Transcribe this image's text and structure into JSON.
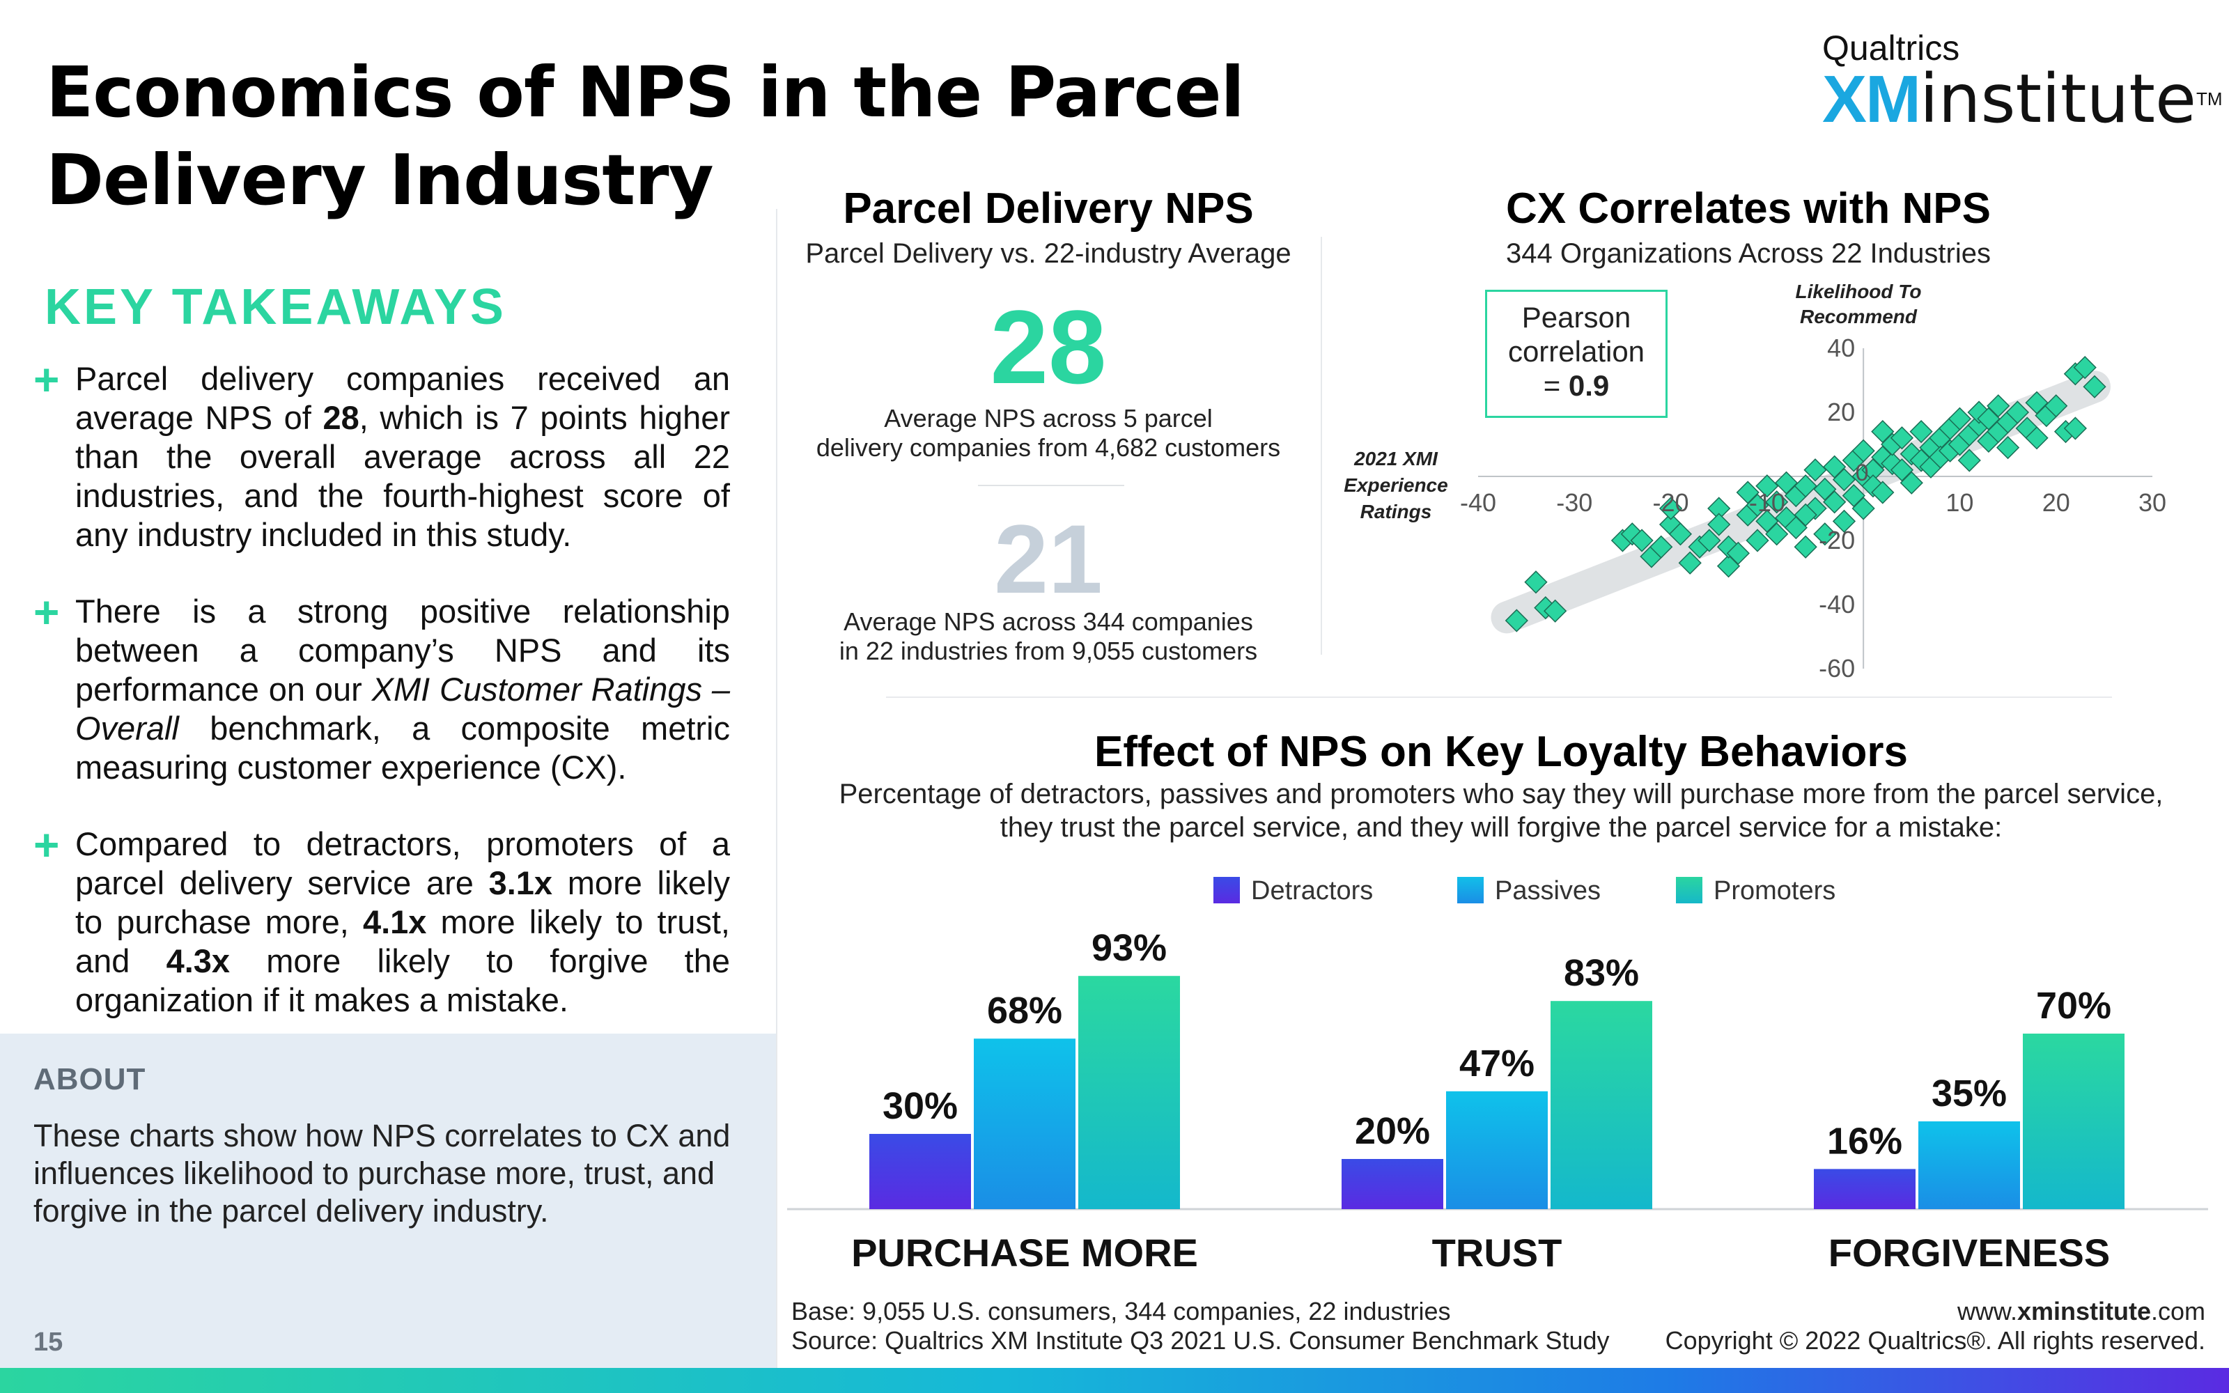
{
  "page": {
    "title": "Economics of NPS in the Parcel Delivery Industry",
    "brand": {
      "small": "Qualtrics",
      "xm": "XM",
      "institute": "institute",
      "tm": "TM"
    },
    "key_takeaways": {
      "heading": "KEY TAKEAWAYS",
      "bullets": [
        {
          "pre": "Parcel delivery companies received an average NPS of ",
          "b1": "28",
          "post": ", which is 7 points higher than the overall average across all 22 industries, and the fourth-highest score of any industry included in this study."
        },
        {
          "pre": "There is a strong positive relationship between a company’s NPS and its performance on our ",
          "i1": "XMI Customer Ratings – Overall",
          "post": " benchmark, a composite metric measuring customer experience (CX)."
        },
        {
          "pre": "Compared to detractors, promoters of a parcel delivery service are ",
          "b1": "3.1x",
          "mid1": " more likely to purchase more, ",
          "b2": "4.1x",
          "mid2": " more likely to trust, and ",
          "b3": "4.3x",
          "post": " more likely to forgive the organization if it makes a mistake."
        }
      ]
    },
    "about": {
      "label": "ABOUT",
      "text": "These charts show how NPS correlates to CX and influences likelihood to purchase more, trust, and forgive in the parcel delivery industry."
    },
    "page_number": "15",
    "nps_panel": {
      "title": "Parcel Delivery NPS",
      "subtitle": "Parcel Delivery vs. 22-industry Average",
      "parcel_value": "28",
      "parcel_desc_1": "Average NPS across 5 parcel",
      "parcel_desc_2": "delivery companies from 4,682 customers",
      "industry_value": "21",
      "industry_desc_1": "Average NPS across 344 companies",
      "industry_desc_2": "in 22 industries from 9,055 customers"
    },
    "cx_panel": {
      "title": "CX Correlates with NPS",
      "subtitle": "344 Organizations Across 22 Industries",
      "pearson_1": "Pearson",
      "pearson_2": "correlation",
      "pearson_3a": "= ",
      "pearson_3b": "0.9"
    },
    "loyalty_panel": {
      "title": "Effect of NPS on Key Loyalty Behaviors",
      "subtitle_1": "Percentage of detractors, passives and promoters who say they will purchase more from the parcel service,",
      "subtitle_2": "they trust the parcel service, and they will forgive the parcel service for a mistake:"
    },
    "footer": {
      "base": "Base: 9,055 U.S. consumers, 344 companies, 22 industries",
      "source": "Source: Qualtrics XM Institute Q3 2021 U.S. Consumer Benchmark Study",
      "site_pre": "www.",
      "site_bold": "xminstitute",
      "site_post": ".com",
      "copyright": "Copyright © 2022 Qualtrics®. All rights reserved."
    },
    "colors": {
      "accent": "#2bd5a0",
      "detractors": "#4a33e0",
      "passives": "#10b4e6",
      "promoters": "#2bd5a0"
    }
  },
  "chart_data": [
    {
      "type": "scatter",
      "xlabel": "2021 XMI Experience Ratings",
      "ylabel": "Likelihood To Recommend",
      "xlim": [
        -40,
        30
      ],
      "ylim": [
        -60,
        40
      ],
      "x_ticks": [
        -40,
        -30,
        -20,
        -10,
        0,
        10,
        20,
        30
      ],
      "y_ticks": [
        -60,
        -40,
        -20,
        0,
        20,
        40
      ],
      "trend_band": true,
      "points": [
        [
          -36,
          -45
        ],
        [
          -34,
          -33
        ],
        [
          -33,
          -41
        ],
        [
          -32,
          -42
        ],
        [
          -25,
          -20
        ],
        [
          -24,
          -18
        ],
        [
          -23,
          -20
        ],
        [
          -22,
          -25
        ],
        [
          -21,
          -22
        ],
        [
          -20,
          -15
        ],
        [
          -19,
          -18
        ],
        [
          -18,
          -27
        ],
        [
          -17,
          -22
        ],
        [
          -16,
          -20
        ],
        [
          -15,
          -10
        ],
        [
          -14,
          -28
        ],
        [
          -14,
          -22
        ],
        [
          -13,
          -24
        ],
        [
          -12,
          -12
        ],
        [
          -12,
          -5
        ],
        [
          -11,
          -20
        ],
        [
          -10,
          -14
        ],
        [
          -10,
          -3
        ],
        [
          -9,
          -8
        ],
        [
          -9,
          -18
        ],
        [
          -8,
          -2
        ],
        [
          -8,
          -13
        ],
        [
          -7,
          -6
        ],
        [
          -7,
          -16
        ],
        [
          -6,
          -3
        ],
        [
          -6,
          -22
        ],
        [
          -5,
          -10
        ],
        [
          -5,
          2
        ],
        [
          -4,
          -4
        ],
        [
          -4,
          -18
        ],
        [
          -3,
          3
        ],
        [
          -3,
          -8
        ],
        [
          -2,
          -1
        ],
        [
          -2,
          -14
        ],
        [
          -1,
          5
        ],
        [
          -1,
          -6
        ],
        [
          0,
          0
        ],
        [
          0,
          -10
        ],
        [
          0,
          8
        ],
        [
          1,
          2
        ],
        [
          1,
          -3
        ],
        [
          2,
          6
        ],
        [
          2,
          -5
        ],
        [
          3,
          4
        ],
        [
          3,
          10
        ],
        [
          4,
          2
        ],
        [
          4,
          12
        ],
        [
          5,
          7
        ],
        [
          5,
          -2
        ],
        [
          6,
          5
        ],
        [
          6,
          14
        ],
        [
          7,
          9
        ],
        [
          7,
          3
        ],
        [
          8,
          12
        ],
        [
          8,
          6
        ],
        [
          9,
          15
        ],
        [
          9,
          8
        ],
        [
          10,
          10
        ],
        [
          10,
          18
        ],
        [
          11,
          13
        ],
        [
          11,
          5
        ],
        [
          12,
          16
        ],
        [
          12,
          20
        ],
        [
          13,
          11
        ],
        [
          13,
          18
        ],
        [
          14,
          14
        ],
        [
          14,
          22
        ],
        [
          15,
          17
        ],
        [
          15,
          9
        ],
        [
          16,
          20
        ],
        [
          17,
          15
        ],
        [
          18,
          23
        ],
        [
          18,
          12
        ],
        [
          19,
          19
        ],
        [
          20,
          22
        ],
        [
          21,
          14
        ],
        [
          22,
          32
        ],
        [
          22,
          15
        ],
        [
          23,
          34
        ],
        [
          24,
          28
        ],
        [
          -20,
          -10
        ],
        [
          -15,
          -15
        ],
        [
          -11,
          -9
        ],
        [
          -6,
          -12
        ],
        [
          2,
          14
        ]
      ]
    },
    {
      "type": "bar",
      "categories": [
        "PURCHASE MORE",
        "TRUST",
        "FORGIVENESS"
      ],
      "series": [
        {
          "name": "Detractors",
          "values": [
            30,
            20,
            16
          ]
        },
        {
          "name": "Passives",
          "values": [
            68,
            47,
            35
          ]
        },
        {
          "name": "Promoters",
          "values": [
            93,
            83,
            70
          ]
        }
      ],
      "value_suffix": "%",
      "ylim": [
        0,
        100
      ],
      "legend": "top"
    }
  ]
}
